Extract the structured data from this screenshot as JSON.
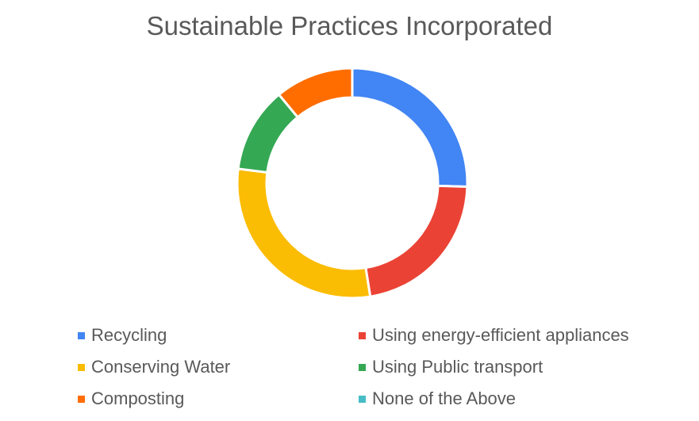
{
  "chart_data": {
    "type": "pie",
    "style": "donut",
    "title": "Sustainable Practices Incorporated",
    "legend_position": "bottom",
    "categories": [
      "Recycling",
      "Using energy-efficient appliances",
      "Conserving Water",
      "Using Public transport",
      "Composting",
      "None of the Above"
    ],
    "values": [
      25.5,
      22.0,
      29.5,
      12.0,
      11.0,
      0
    ],
    "colors": [
      "#4285f4",
      "#ea4335",
      "#fbbc04",
      "#34a853",
      "#ff6d01",
      "#46bdc6"
    ]
  }
}
